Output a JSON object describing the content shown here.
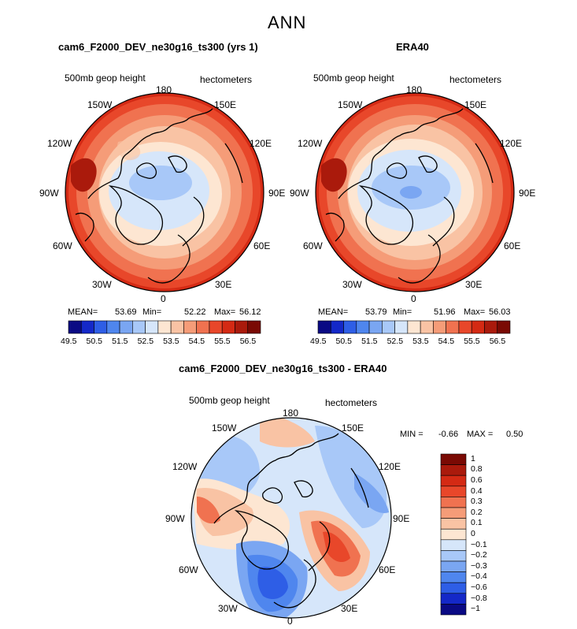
{
  "suptitle": "ANN",
  "panels": [
    {
      "title": "cam6_F2000_DEV_ne30g16_ts300 (yrs 1)",
      "variable": "500mb geop height",
      "units": "hectometers",
      "lon_labels": {
        "n180": "180",
        "e150": "150E",
        "e120": "120E",
        "e90": "90E",
        "e60": "60E",
        "e30": "30E",
        "z0": "0",
        "w30": "30W",
        "w60": "60W",
        "w90": "90W",
        "w120": "120W",
        "w150": "150W"
      },
      "stats": {
        "mean_label": "MEAN=",
        "mean": "53.69",
        "min_label": "Min=",
        "min": "52.22",
        "max_label": "Max=",
        "max": "56.12"
      }
    },
    {
      "title": "ERA40",
      "variable": "500mb geop height",
      "units": "hectometers",
      "lon_labels": {
        "n180": "180",
        "e150": "150E",
        "e120": "120E",
        "e90": "90E",
        "e60": "60E",
        "e30": "30E",
        "z0": "0",
        "w30": "30W",
        "w60": "60W",
        "w90": "90W",
        "w120": "120W",
        "w150": "150W"
      },
      "stats": {
        "mean_label": "MEAN=",
        "mean": "53.79",
        "min_label": "Min=",
        "min": "51.96",
        "max_label": "Max=",
        "max": "56.03"
      }
    },
    {
      "title": "cam6_F2000_DEV_ne30g16_ts300 - ERA40",
      "variable": "500mb geop height",
      "units": "hectometers",
      "lon_labels": {
        "n180": "180",
        "e150": "150E",
        "e120": "120E",
        "e90": "90E",
        "e60": "60E",
        "e30": "30E",
        "z0": "0",
        "w30": "30W",
        "w60": "60W",
        "w90": "90W",
        "w120": "120W",
        "w150": "150W"
      },
      "stats": {
        "min_label": "MIN =",
        "min": "-0.66",
        "max_label": "MAX =",
        "max": "0.50"
      }
    }
  ],
  "colorbar_abs": {
    "colors": [
      "#0a0a84",
      "#1428c8",
      "#2e5ee6",
      "#4f86ee",
      "#7aa6f2",
      "#a8c8f8",
      "#d6e6fa",
      "#fde6d2",
      "#f9c3a4",
      "#f59c78",
      "#f07250",
      "#e8472a",
      "#d42a14",
      "#aa1a0c",
      "#7a0a04"
    ],
    "labels": [
      "49.5",
      "50.5",
      "51.5",
      "52.5",
      "53.5",
      "54.5",
      "55.5",
      "56.5"
    ]
  },
  "colorbar_diff": {
    "colors": [
      "#7a0a04",
      "#aa1a0c",
      "#d42a14",
      "#e8472a",
      "#f07250",
      "#f59c78",
      "#f9c3a4",
      "#fde6d2",
      "#d6e6fa",
      "#a8c8f8",
      "#7aa6f2",
      "#4f86ee",
      "#2e5ee6",
      "#1428c8",
      "#0a0a84"
    ],
    "labels": [
      "1",
      "0.8",
      "0.6",
      "0.4",
      "0.3",
      "0.2",
      "0.1",
      "0",
      "−0.1",
      "−0.2",
      "−0.3",
      "−0.4",
      "−0.6",
      "−0.8",
      "−1"
    ]
  },
  "chart_data": [
    {
      "type": "heatmap",
      "title": "cam6_F2000_DEV_ne30g16_ts300 (yrs 1)",
      "variable": "500mb geop height",
      "units": "hectometers",
      "levels": [
        49.5,
        50.0,
        50.5,
        51.0,
        51.5,
        52.0,
        52.5,
        53.0,
        53.5,
        54.0,
        54.5,
        55.0,
        55.5,
        56.0,
        56.5
      ],
      "mean": 53.69,
      "min": 52.22,
      "max": 56.12
    },
    {
      "type": "heatmap",
      "title": "ERA40",
      "variable": "500mb geop height",
      "units": "hectometers",
      "levels": [
        49.5,
        50.0,
        50.5,
        51.0,
        51.5,
        52.0,
        52.5,
        53.0,
        53.5,
        54.0,
        54.5,
        55.0,
        55.5,
        56.0,
        56.5
      ],
      "mean": 53.79,
      "min": 51.96,
      "max": 56.03
    },
    {
      "type": "heatmap",
      "title": "cam6_F2000_DEV_ne30g16_ts300 - ERA40",
      "variable": "500mb geop height",
      "units": "hectometers",
      "levels": [
        -1,
        -0.8,
        -0.6,
        -0.4,
        -0.3,
        -0.2,
        -0.1,
        0,
        0.1,
        0.2,
        0.3,
        0.4,
        0.6,
        0.8,
        1
      ],
      "min": -0.66,
      "max": 0.5
    }
  ]
}
